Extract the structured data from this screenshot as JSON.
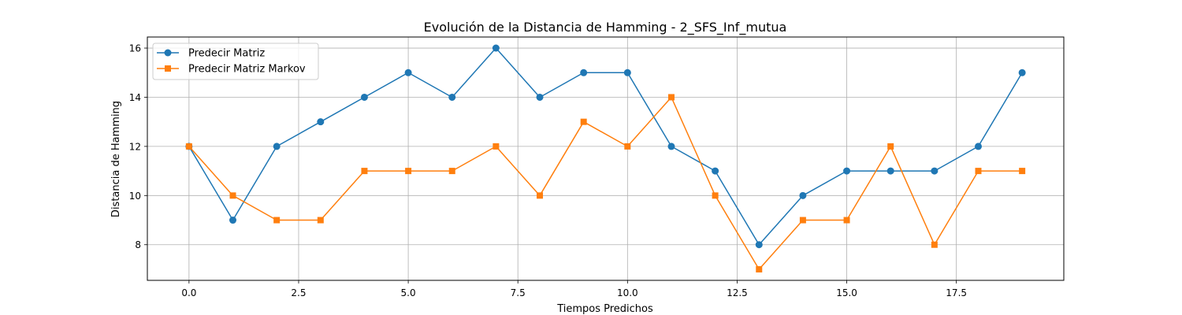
{
  "chart_data": {
    "type": "line",
    "title": "Evolución de la Distancia de Hamming - 2_SFS_Inf_mutua",
    "xlabel": "Tiempos Predichos",
    "ylabel": "Distancia de Hamming",
    "x": [
      0,
      1,
      2,
      3,
      4,
      5,
      6,
      7,
      8,
      9,
      10,
      11,
      12,
      13,
      14,
      15,
      16,
      17,
      18,
      19
    ],
    "xlim": [
      -0.95,
      19.95
    ],
    "ylim": [
      6.55,
      16.45
    ],
    "xticks": [
      0.0,
      2.5,
      5.0,
      7.5,
      10.0,
      12.5,
      15.0,
      17.5
    ],
    "xtick_labels": [
      "0.0",
      "2.5",
      "5.0",
      "7.5",
      "10.0",
      "12.5",
      "15.0",
      "17.5"
    ],
    "yticks": [
      8,
      10,
      12,
      14,
      16
    ],
    "ytick_labels": [
      "8",
      "10",
      "12",
      "14",
      "16"
    ],
    "grid": true,
    "legend_position": "top-left",
    "series": [
      {
        "name": "Predecir Matriz",
        "color": "#1f77b4",
        "marker": "circle",
        "values": [
          12,
          9,
          12,
          13,
          14,
          15,
          14,
          16,
          14,
          15,
          15,
          12,
          11,
          8,
          10,
          11,
          11,
          11,
          12,
          15
        ]
      },
      {
        "name": "Predecir Matriz Markov",
        "color": "#ff7f0e",
        "marker": "square",
        "values": [
          12,
          10,
          9,
          9,
          11,
          11,
          11,
          12,
          10,
          13,
          12,
          14,
          10,
          7,
          9,
          9,
          12,
          8,
          11,
          11
        ]
      }
    ]
  }
}
